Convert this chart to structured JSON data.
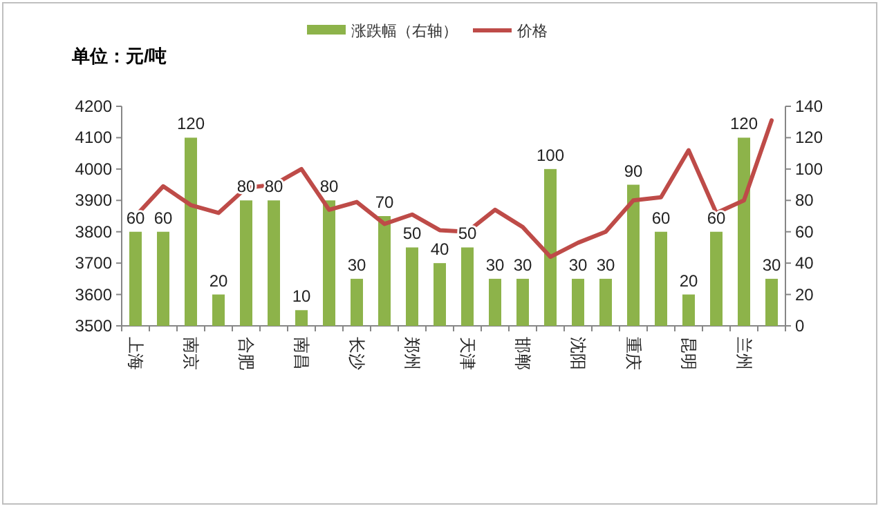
{
  "chart_data": {
    "type": "bar",
    "title": "单位：元/吨",
    "categories": [
      "上海",
      null,
      "南京",
      null,
      "合肥",
      null,
      "南昌",
      null,
      "长沙",
      null,
      "郑州",
      null,
      "天津",
      null,
      "邯郸",
      null,
      "沈阳",
      null,
      "重庆",
      null,
      "昆明",
      null,
      "兰州",
      null
    ],
    "series": [
      {
        "name": "涨跌幅（右轴）",
        "axis": "y2",
        "color": "#8db34a",
        "values": [
          60,
          60,
          120,
          20,
          80,
          80,
          10,
          80,
          30,
          70,
          50,
          40,
          50,
          30,
          30,
          100,
          30,
          30,
          90,
          60,
          20,
          60,
          120,
          30
        ],
        "value_labels": [
          "60",
          "60",
          "120",
          "20",
          "80",
          "80",
          "10",
          "80",
          "30",
          "70",
          "50",
          "40",
          "50",
          "30",
          "30",
          "100",
          "30",
          "30",
          "90",
          "60",
          "20",
          "60",
          "120",
          "30"
        ]
      },
      {
        "name": "价格",
        "type": "line",
        "color": "#be4b48",
        "values": [
          3850,
          3945,
          3885,
          3860,
          3940,
          3950,
          4000,
          3870,
          3895,
          3825,
          3855,
          3805,
          3800,
          3870,
          3815,
          3720,
          3765,
          3800,
          3900,
          3910,
          4060,
          3860,
          3900,
          4155
        ]
      }
    ],
    "ylim": [
      3500,
      4200
    ],
    "yticks": [
      3500,
      3600,
      3700,
      3800,
      3900,
      4000,
      4100,
      4200
    ],
    "y2lim": [
      0,
      140
    ],
    "y2ticks": [
      0,
      20,
      40,
      60,
      80,
      100,
      120,
      140
    ],
    "legend": "top",
    "grid": false
  }
}
